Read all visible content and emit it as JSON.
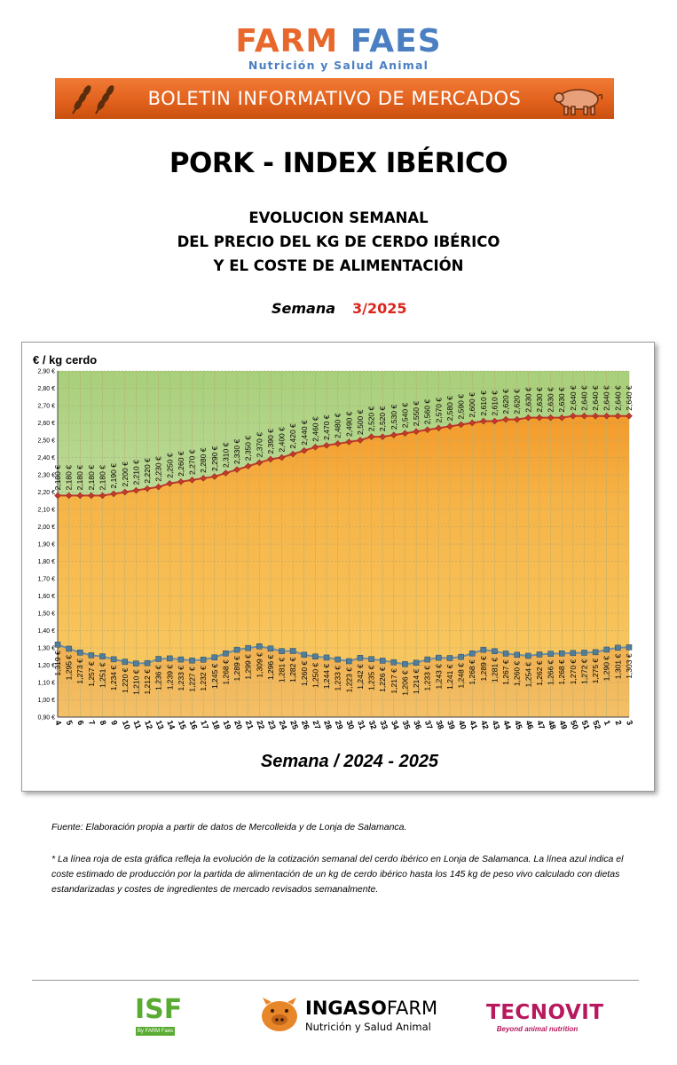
{
  "header": {
    "brand_part1": "FARM",
    "brand_part2": "FAES",
    "brand_tagline": "Nutrición y Salud Animal",
    "banner_text": "BOLETIN INFORMATIVO DE MERCADOS",
    "banner_left_icon": "wheat-icon",
    "banner_right_icon": "pig-icon"
  },
  "report": {
    "title": "PORK - INDEX IBÉRICO",
    "subtitle_line1": "EVOLUCION SEMANAL",
    "subtitle_line2": "DEL PRECIO DEL KG DE CERDO IBÉRICO",
    "subtitle_line3": "Y EL COSTE DE ALIMENTACIÓN",
    "week_label": "Semana",
    "week_value": "3/2025"
  },
  "chart_data": {
    "type": "area",
    "ylabel": "€ / kg cerdo",
    "xlabel": "Semana / 2024 - 2025",
    "ylim": [
      0.9,
      2.9
    ],
    "y_ticks": [
      "0,90 €",
      "1,00 €",
      "1,10 €",
      "1,20 €",
      "1,30 €",
      "1,40 €",
      "1,50 €",
      "1,60 €",
      "1,70 €",
      "1,80 €",
      "1,90 €",
      "2,00 €",
      "2,10 €",
      "2,20 €",
      "2,30 €",
      "2,40 €",
      "2,50 €",
      "2,60 €",
      "2,70 €",
      "2,80 €",
      "2,90 €"
    ],
    "grid": true,
    "categories": [
      "4",
      "5",
      "6",
      "7",
      "8",
      "9",
      "10",
      "11",
      "12",
      "13",
      "14",
      "15",
      "16",
      "17",
      "18",
      "19",
      "20",
      "21",
      "22",
      "23",
      "24",
      "25",
      "26",
      "27",
      "28",
      "29",
      "30",
      "31",
      "32",
      "33",
      "34",
      "35",
      "36",
      "37",
      "38",
      "39",
      "40",
      "41",
      "42",
      "43",
      "44",
      "45",
      "46",
      "47",
      "48",
      "49",
      "50",
      "51",
      "52",
      "1",
      "2",
      "3"
    ],
    "series": [
      {
        "values": [
          2.18,
          2.18,
          2.18,
          2.18,
          2.18,
          2.19,
          2.2,
          2.21,
          2.22,
          2.23,
          2.25,
          2.26,
          2.27,
          2.28,
          2.29,
          2.31,
          2.33,
          2.35,
          2.37,
          2.39,
          2.4,
          2.42,
          2.44,
          2.46,
          2.47,
          2.48,
          2.49,
          2.5,
          2.52,
          2.52,
          2.53,
          2.54,
          2.55,
          2.56,
          2.57,
          2.58,
          2.59,
          2.6,
          2.61,
          2.61,
          2.62,
          2.62,
          2.63,
          2.63,
          2.63,
          2.63,
          2.64,
          2.64,
          2.64,
          2.64,
          2.64,
          2.64
        ],
        "labels": [
          "2,180 €",
          "2,180 €",
          "2,180 €",
          "2,180 €",
          "2,180 €",
          "2,190 €",
          "2,200 €",
          "2,210 €",
          "2,220 €",
          "2,230 €",
          "2,250 €",
          "2,260 €",
          "2,270 €",
          "2,280 €",
          "2,290 €",
          "2,310 €",
          "2,330 €",
          "2,350 €",
          "2,370 €",
          "2,390 €",
          "2,400 €",
          "2,420 €",
          "2,440 €",
          "2,460 €",
          "2,470 €",
          "2,480 €",
          "2,490 €",
          "2,500 €",
          "2,520 €",
          "2,520 €",
          "2,530 €",
          "2,540 €",
          "2,550 €",
          "2,560 €",
          "2,570 €",
          "2,580 €",
          "2,590 €",
          "2,600 €",
          "2,610 €",
          "2,610 €",
          "2,620 €",
          "2,620 €",
          "2,630 €",
          "2,630 €",
          "2,630 €",
          "2,630 €",
          "2,640 €",
          "2,640 €",
          "2,640 €",
          "2,640 €",
          "2,640 €",
          "2,640 €"
        ],
        "color": "#c0392b",
        "fill": "#f6b447"
      },
      {
        "values": [
          1.319,
          1.295,
          1.273,
          1.257,
          1.251,
          1.234,
          1.22,
          1.21,
          1.212,
          1.236,
          1.239,
          1.233,
          1.227,
          1.232,
          1.245,
          1.268,
          1.289,
          1.299,
          1.309,
          1.296,
          1.281,
          1.282,
          1.26,
          1.25,
          1.244,
          1.233,
          1.223,
          1.242,
          1.235,
          1.226,
          1.217,
          1.206,
          1.214,
          1.233,
          1.243,
          1.241,
          1.248,
          1.268,
          1.289,
          1.281,
          1.267,
          1.26,
          1.254,
          1.262,
          1.266,
          1.268,
          1.27,
          1.272,
          1.275,
          1.29,
          1.301,
          1.303
        ],
        "labels": [
          "1,319 €",
          "1,295 €",
          "1,273 €",
          "1,257 €",
          "1,251 €",
          "1,234 €",
          "1,220 €",
          "1,210 €",
          "1,212 €",
          "1,236 €",
          "1,239 €",
          "1,233 €",
          "1,227 €",
          "1,232 €",
          "1,245 €",
          "1,268 €",
          "1,289 €",
          "1,299 €",
          "1,309 €",
          "1,296 €",
          "1,281 €",
          "1,282 €",
          "1,260 €",
          "1,250 €",
          "1,244 €",
          "1,233 €",
          "1,223 €",
          "1,242 €",
          "1,235 €",
          "1,226 €",
          "1,217 €",
          "1,206 €",
          "1,214 €",
          "1,233 €",
          "1,243 €",
          "1,241 €",
          "1,248 €",
          "1,268 €",
          "1,289 €",
          "1,281 €",
          "1,267 €",
          "1,260 €",
          "1,254 €",
          "1,262 €",
          "1,266 €",
          "1,268 €",
          "1,270 €",
          "1,272 €",
          "1,275 €",
          "1,290 €",
          "1,301 €",
          "1,303 €"
        ],
        "color": "#6b8fa8",
        "fill": "#e9a93a"
      }
    ]
  },
  "notes": {
    "source": "Fuente: Elaboración propia a partir de datos de Mercolleida y de Lonja de Salamanca.",
    "explanation": "* La línea roja de esta gráfica refleja la evolución de la cotización semanal del cerdo ibérico en Lonja de Salamanca. La línea azul indica el coste estimado de producción por la partida de alimentación de un kg de cerdo ibérico hasta los 145 kg de peso vivo calculado con dietas estandarizadas y costes de ingredientes de mercado revisados semanalmente."
  },
  "footer": {
    "logo1": "ISF",
    "logo1_sub": "By FARM Faes",
    "logo2_part1": "INGASO",
    "logo2_part2": "FARM",
    "logo2_sub": "Nutrición y Salud Animal",
    "logo3": "TECNOVIT",
    "logo3_sub": "Beyond animal nutrition"
  }
}
